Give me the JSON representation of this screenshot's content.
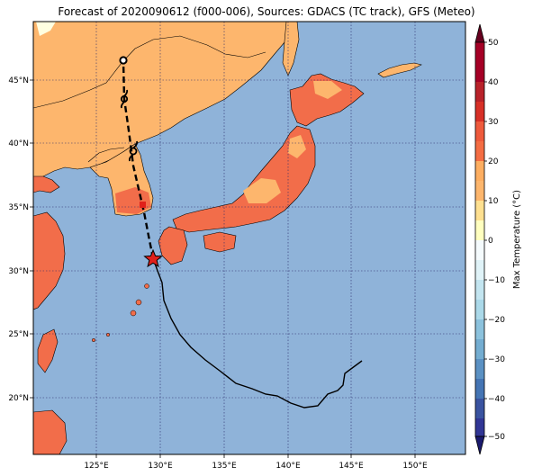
{
  "title": "Forecast of 2020090612 (f000-006), Sources: GDACS (TC track), GFS (Meteo)",
  "map": {
    "lon_labels": [
      "125°E",
      "130°E",
      "135°E",
      "140°E",
      "145°E",
      "150°E"
    ],
    "lat_labels": [
      "45°N",
      "40°N",
      "35°N",
      "30°N",
      "25°N",
      "20°N"
    ],
    "colors": {
      "ocean": "#8fb3d9",
      "temp_10_20": "#fdb66d",
      "temp_20_30": "#f26d4a",
      "temp_0_10": "#ffffe0",
      "track": "#000000",
      "current_position": "#e0201b"
    }
  },
  "colorbar": {
    "label": "Max Temperature (°C)",
    "ticks": [
      "50",
      "40",
      "30",
      "20",
      "10",
      "0",
      "−10",
      "−20",
      "−30",
      "−40",
      "−50"
    ],
    "colors": [
      "#67001f",
      "#a50026",
      "#d73027",
      "#f46d43",
      "#fdae61",
      "#fee090",
      "#ffffbf",
      "#e0f3f8",
      "#abd9e9",
      "#74add1",
      "#4575b4",
      "#313695",
      "#1a1a6e"
    ]
  },
  "track": {
    "past_style": "solid",
    "forecast_style": "dashed",
    "current_marker": "star-icon",
    "forecast_markers": [
      "tc-symbol-icon",
      "tc-symbol-icon",
      "tc-symbol-icon"
    ]
  }
}
